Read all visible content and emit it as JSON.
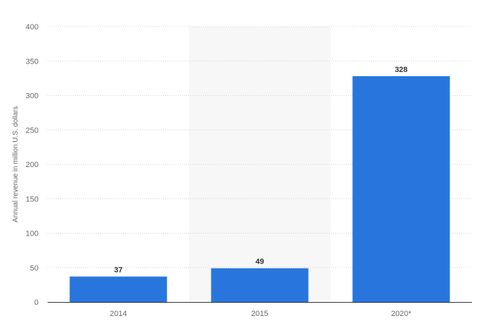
{
  "chart_data": {
    "type": "bar",
    "categories": [
      "2014",
      "2015",
      "2020*"
    ],
    "values": [
      37,
      49,
      328
    ],
    "data_labels": [
      "37",
      "49",
      "328"
    ],
    "title": "",
    "xlabel": "",
    "ylabel": "Annual revenue in million U.S. dollars",
    "ylim": [
      0,
      400
    ],
    "yticks": [
      0,
      50,
      100,
      150,
      200,
      250,
      300,
      350,
      400
    ],
    "ytick_labels": [
      "0",
      "50",
      "100",
      "150",
      "200",
      "250",
      "300",
      "350",
      "400"
    ],
    "grid": true,
    "highlighted_category": "2015",
    "colors": {
      "bar": "#2876dd",
      "highlight_band": "#f7f7f7",
      "grid": "#cfcfcf",
      "baseline": "#333333"
    }
  }
}
